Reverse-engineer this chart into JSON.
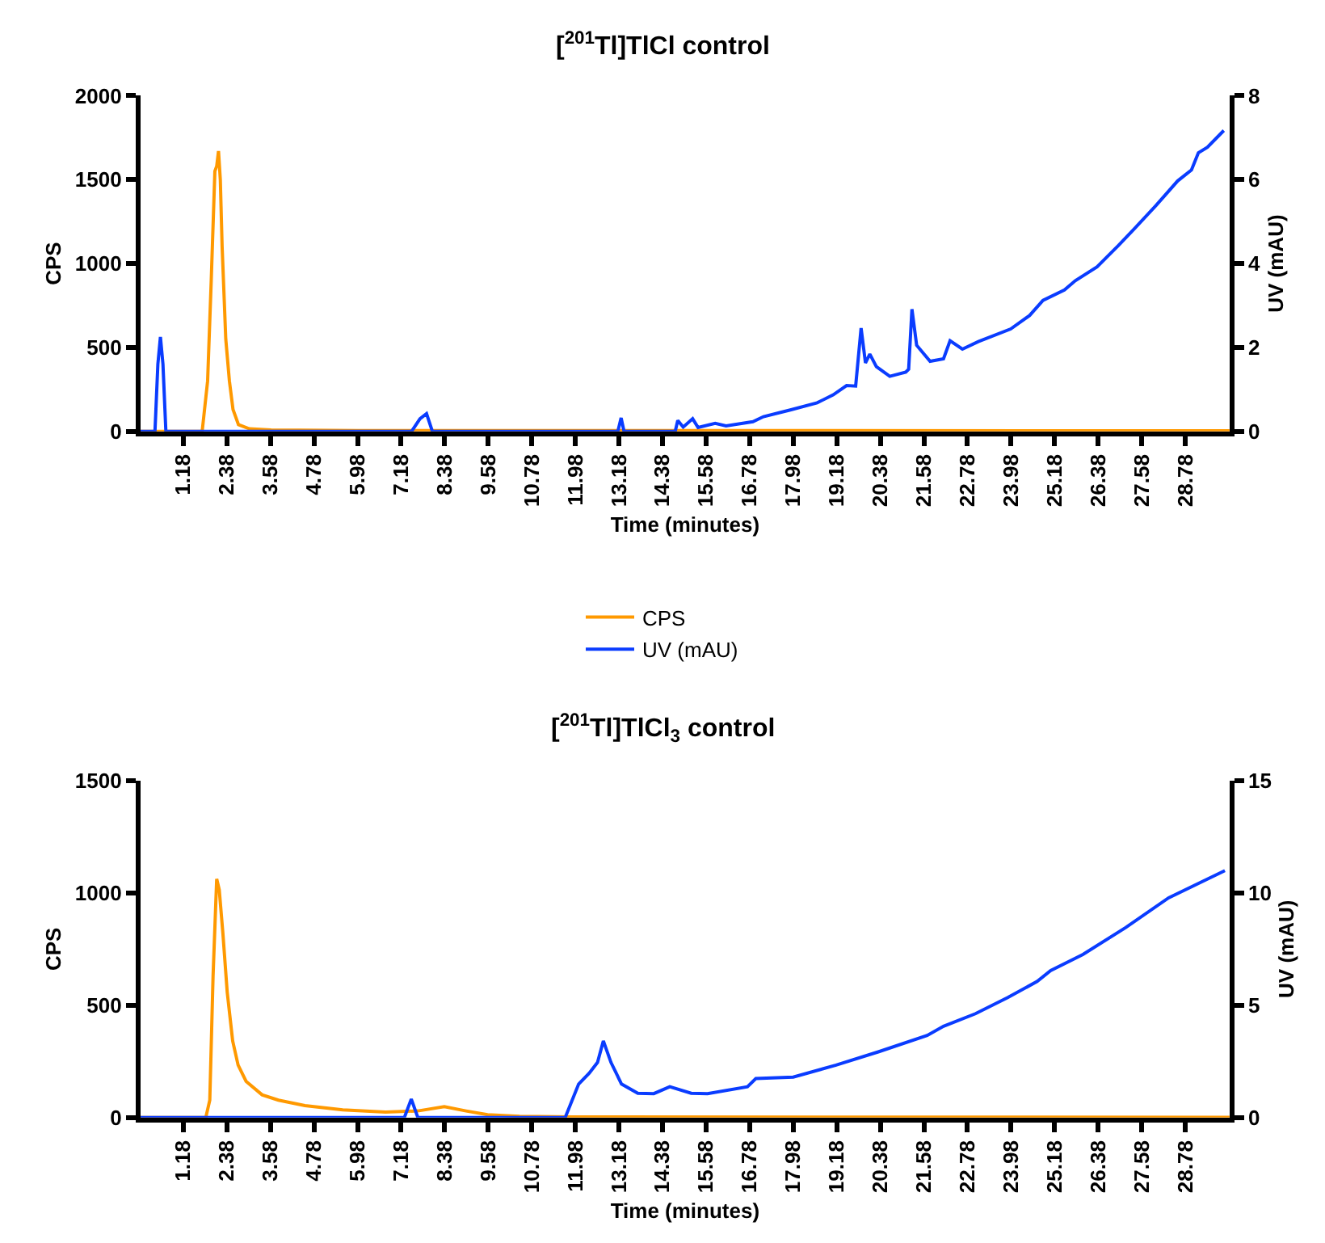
{
  "chart_data": [
    {
      "type": "line",
      "title": "[$^{201}$Tl]TlCl control",
      "xlabel": "Time (minutes)",
      "ylabel": "CPS",
      "y2label": "UV (mAU)",
      "legend": "bottom",
      "xlim": [
        0,
        30
      ],
      "xticks": [
        1.18,
        2.38,
        3.58,
        4.78,
        5.98,
        7.18,
        8.38,
        9.58,
        10.78,
        11.98,
        13.18,
        14.38,
        15.58,
        16.78,
        17.98,
        19.18,
        20.38,
        21.58,
        22.78,
        23.98,
        25.18,
        26.38,
        27.58,
        28.78
      ],
      "ylim": [
        0,
        2000
      ],
      "yticks": [
        0,
        500,
        1000,
        1500,
        2000
      ],
      "y2lim": [
        0,
        8
      ],
      "y2ticks": [
        0,
        2,
        4,
        6,
        8
      ],
      "series": [
        {
          "name": "CPS",
          "color": "#ff9900",
          "x": [
            0,
            1.7,
            1.85,
            1.95,
            2.05,
            2.1,
            2.15,
            2.2,
            2.25,
            2.35,
            2.45,
            2.55,
            2.7,
            3.0,
            3.6,
            6.0,
            30
          ],
          "values": [
            0,
            0,
            300,
            900,
            1550,
            1580,
            1670,
            1500,
            1100,
            550,
            300,
            130,
            40,
            15,
            8,
            5,
            3
          ]
        },
        {
          "name": "UV (mAU)",
          "color": "#0a3cff",
          "axis": "y2",
          "x": [
            0,
            0.4,
            0.48,
            0.55,
            0.62,
            0.7,
            7.47,
            7.7,
            7.88,
            8.04,
            13.15,
            13.24,
            13.32,
            14.73,
            14.8,
            14.95,
            15.21,
            15.36,
            15.83,
            16.13,
            16.87,
            17.16,
            17.9,
            18.64,
            19.08,
            19.45,
            19.7,
            19.85,
            19.97,
            20.09,
            20.27,
            20.64,
            21.08,
            21.16,
            21.25,
            21.38,
            21.75,
            22.12,
            22.3,
            22.64,
            23.08,
            23.97,
            24.49,
            24.86,
            25.45,
            25.75,
            26.35,
            26.94,
            27.38,
            27.98,
            28.57,
            28.95,
            29.14,
            29.39,
            29.84
          ],
          "values": [
            0,
            0,
            1.6,
            2.25,
            1.6,
            0,
            0,
            0.3,
            0.42,
            0,
            0,
            0.32,
            0,
            0,
            0.26,
            0.1,
            0.3,
            0.09,
            0.19,
            0.13,
            0.23,
            0.35,
            0.51,
            0.68,
            0.87,
            1.09,
            1.08,
            2.46,
            1.63,
            1.84,
            1.54,
            1.31,
            1.41,
            1.48,
            2.91,
            2.05,
            1.67,
            1.73,
            2.16,
            1.96,
            2.14,
            2.44,
            2.76,
            3.12,
            3.37,
            3.59,
            3.92,
            4.43,
            4.83,
            5.39,
            5.97,
            6.23,
            6.64,
            6.77,
            7.17
          ]
        }
      ]
    },
    {
      "type": "line",
      "title": "[$^{201}$Tl]TlCl$_{3}$ control",
      "xlabel": "Time (minutes)",
      "ylabel": "CPS",
      "y2label": "UV (mAU)",
      "xlim": [
        0,
        30
      ],
      "xticks": [
        1.18,
        2.38,
        3.58,
        4.78,
        5.98,
        7.18,
        8.38,
        9.58,
        10.78,
        11.98,
        13.18,
        14.38,
        15.58,
        16.78,
        17.98,
        19.18,
        20.38,
        21.58,
        22.78,
        23.98,
        25.18,
        26.38,
        27.58,
        28.78
      ],
      "ylim": [
        0,
        1500
      ],
      "yticks": [
        0,
        500,
        1000,
        1500
      ],
      "y2lim": [
        0,
        15
      ],
      "y2ticks": [
        0,
        5,
        10,
        15
      ],
      "series": [
        {
          "color": "#ff9900",
          "x": [
            0,
            1.8,
            1.91,
            2.0,
            2.1,
            2.17,
            2.27,
            2.39,
            2.54,
            2.69,
            2.91,
            3.35,
            3.8,
            4.53,
            5.57,
            6.75,
            7.64,
            8.37,
            8.97,
            9.56,
            10.44,
            11.92,
            30
          ],
          "values": [
            0,
            0,
            77,
            630,
            1062,
            1014,
            822,
            558,
            341,
            233,
            161,
            101,
            77,
            53,
            34,
            24,
            29,
            48,
            29,
            12,
            5,
            2,
            1
          ]
        },
        {
          "color": "#0a3cff",
          "axis": "y2",
          "x": [
            0,
            7.27,
            7.46,
            7.64,
            11.7,
            12.07,
            12.36,
            12.59,
            12.75,
            12.96,
            13.25,
            13.7,
            14.14,
            14.58,
            15.17,
            15.62,
            16.72,
            16.95,
            17.98,
            19.16,
            20.34,
            21.67,
            22.12,
            23.0,
            23.89,
            24.7,
            25.07,
            25.96,
            27.14,
            28.32,
            29.87
          ],
          "values": [
            0,
            0,
            0.82,
            0,
            0,
            1.49,
            1.97,
            2.45,
            3.41,
            2.45,
            1.49,
            1.08,
            1.06,
            1.37,
            1.08,
            1.06,
            1.37,
            1.73,
            1.8,
            2.33,
            2.93,
            3.65,
            4.06,
            4.62,
            5.34,
            6.06,
            6.54,
            7.26,
            8.46,
            9.78,
            10.99
          ]
        }
      ]
    }
  ]
}
